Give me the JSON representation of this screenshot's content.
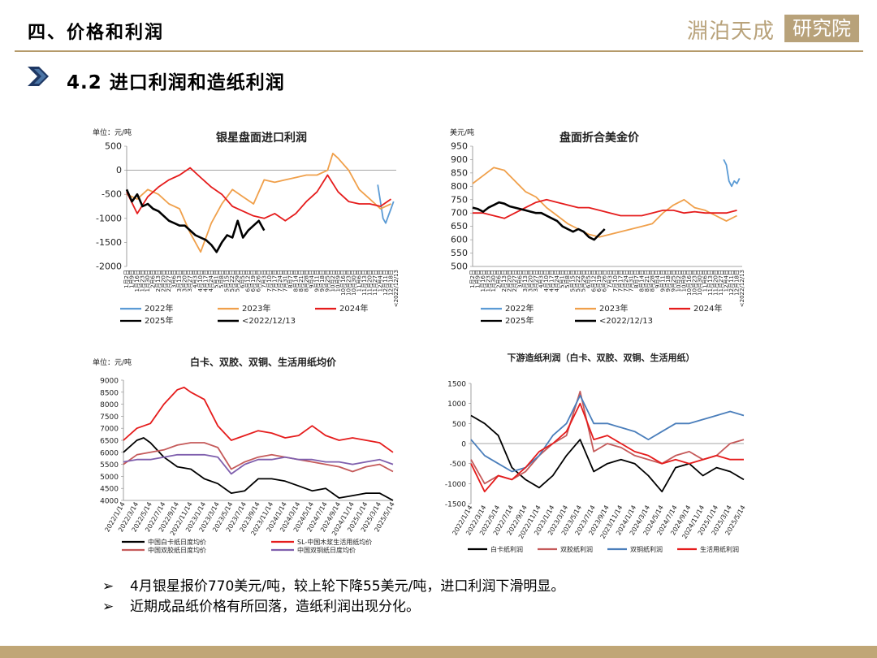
{
  "header": {
    "title": "四、价格和利润",
    "logo_main": "淵泊天成",
    "logo_box": "研究院"
  },
  "subtitle": "4.2 进口利润和造纸利润",
  "bullets": [
    "4月银星报价770美元/吨，较上轮下降55美元/吨，进口利润下滑明显。",
    "近期成品纸价格有所回落，造纸利润出现分化。"
  ],
  "bullet_mark": "➢",
  "colors": {
    "accent": "#b59a6a",
    "arrow": "#1f3864",
    "y2022": "#5b9bd5",
    "y2023": "#f0a04b",
    "y2024": "#e51c1c",
    "y2025": "#000000"
  },
  "chart_data": [
    {
      "type": "line",
      "title": "银星盘面进口利润",
      "unit_label": "单位：元/吨",
      "ylim": [
        -2000,
        500
      ],
      "yticks": [
        "500",
        "0",
        "-500",
        "-1000",
        "-1500",
        "-2000"
      ],
      "xticks": [
        "1月2日",
        "1月9日",
        "1月16日",
        "1月23日",
        "1月30日",
        "2月6日",
        "2月13日",
        "2月20日",
        "2月27日",
        "3月6日",
        "3月13日",
        "3月20日",
        "3月27日",
        "4月3日",
        "4月10日",
        "4月17日",
        "4月24日",
        "5月1日",
        "5月8日",
        "5月15日",
        "5月22日",
        "5月29日",
        "6月5日",
        "6月12日",
        "6月19日",
        "6月26日",
        "7月3日",
        "7月10日",
        "7月17日",
        "7月24日",
        "7月31日",
        "8月7日",
        "8月14日",
        "8月21日",
        "8月28日",
        "9月4日",
        "9月11日",
        "9月18日",
        "9月25日",
        "10月2日",
        "10月9日",
        "10月16日",
        "10月23日",
        "10月30日",
        "11月6日",
        "11月13日",
        "11月20日",
        "11月27日",
        "12月4日",
        "12月11日",
        "12月18日",
        "<2022/12/13"
      ],
      "x_max": 51,
      "series": [
        {
          "name": "2022年",
          "color": "#5b9bd5",
          "x": [
            47.5,
            48,
            48.5,
            49,
            49.5,
            50,
            50.5
          ],
          "y": [
            -300,
            -650,
            -1000,
            -1100,
            -950,
            -800,
            -650
          ]
        },
        {
          "name": "2023年",
          "color": "#f0a04b",
          "x": [
            0,
            2,
            4,
            6,
            8,
            10,
            12,
            14,
            16,
            18,
            20,
            22,
            24,
            26,
            28,
            30,
            32,
            34,
            36,
            38,
            39,
            40,
            42,
            44,
            46,
            48,
            50
          ],
          "y": [
            -500,
            -600,
            -400,
            -500,
            -700,
            -800,
            -1300,
            -1700,
            -1100,
            -700,
            -400,
            -550,
            -700,
            -200,
            -250,
            -200,
            -150,
            -100,
            -100,
            0,
            350,
            250,
            0,
            -400,
            -600,
            -800,
            -700
          ]
        },
        {
          "name": "2024年",
          "color": "#e51c1c",
          "x": [
            0,
            2,
            4,
            6,
            8,
            10,
            12,
            14,
            16,
            18,
            20,
            22,
            24,
            26,
            28,
            30,
            32,
            34,
            36,
            38,
            40,
            42,
            44,
            46,
            48,
            50
          ],
          "y": [
            -450,
            -900,
            -550,
            -350,
            -200,
            -100,
            50,
            -150,
            -350,
            -500,
            -750,
            -850,
            -950,
            -1000,
            -900,
            -1050,
            -900,
            -650,
            -450,
            -100,
            -450,
            -650,
            -700,
            -700,
            -750,
            -600
          ]
        },
        {
          "name": "2025年",
          "color": "#000000",
          "x": [
            0,
            1,
            2,
            3,
            4,
            5,
            6,
            7,
            8,
            9,
            10,
            11,
            12,
            13,
            14,
            15,
            16,
            17,
            18,
            19,
            20,
            21,
            22,
            23,
            24,
            25,
            26
          ],
          "y": [
            -400,
            -650,
            -500,
            -750,
            -700,
            -800,
            -850,
            -950,
            -1050,
            -1100,
            -1150,
            -1150,
            -1250,
            -1350,
            -1400,
            -1450,
            -1550,
            -1700,
            -1500,
            -1350,
            -1400,
            -1050,
            -1400,
            -1250,
            -1150,
            -1050,
            -1250
          ]
        }
      ],
      "legend": [
        "2022年",
        "2023年",
        "2024年",
        "2025年",
        "<2022/12/13"
      ]
    },
    {
      "type": "line",
      "title": "盘面折合美金价",
      "unit_label": "美元/吨",
      "ylim": [
        500,
        950
      ],
      "yticks": [
        "950",
        "900",
        "850",
        "800",
        "750",
        "700",
        "650",
        "600",
        "550",
        "500"
      ],
      "xticks": [
        "1月2日",
        "1月9日",
        "1月16日",
        "1月23日",
        "1月30日",
        "2月6日",
        "2月13日",
        "2月20日",
        "2月27日",
        "3月6日",
        "3月13日",
        "3月20日",
        "3月27日",
        "4月3日",
        "4月10日",
        "4月17日",
        "4月24日",
        "5月1日",
        "5月8日",
        "5月15日",
        "5月22日",
        "5月29日",
        "6月5日",
        "6月12日",
        "6月19日",
        "6月26日",
        "7月3日",
        "7月10日",
        "7月17日",
        "7月24日",
        "7月31日",
        "8月7日",
        "8月14日",
        "8月21日",
        "8月28日",
        "9月4日",
        "9月11日",
        "9月18日",
        "9月25日",
        "10月2日",
        "10月9日",
        "10月16日",
        "10月23日",
        "10月30日",
        "11月6日",
        "11月13日",
        "11月20日",
        "11月27日",
        "12月4日",
        "12月11日",
        "12月18日",
        "<2022/12/13"
      ],
      "x_max": 51,
      "series": [
        {
          "name": "2022年",
          "color": "#5b9bd5",
          "x": [
            47.5,
            48,
            48.5,
            49,
            49.5,
            50,
            50.5
          ],
          "y": [
            900,
            880,
            820,
            800,
            820,
            810,
            830
          ]
        },
        {
          "name": "2023年",
          "color": "#f0a04b",
          "x": [
            0,
            2,
            4,
            6,
            8,
            10,
            12,
            14,
            16,
            18,
            20,
            22,
            24,
            26,
            28,
            30,
            32,
            34,
            36,
            38,
            40,
            42,
            44,
            46,
            48,
            50
          ],
          "y": [
            810,
            840,
            870,
            860,
            820,
            780,
            760,
            720,
            690,
            660,
            640,
            620,
            610,
            620,
            630,
            640,
            650,
            660,
            700,
            730,
            750,
            720,
            710,
            690,
            670,
            690
          ]
        },
        {
          "name": "2024年",
          "color": "#e51c1c",
          "x": [
            0,
            2,
            4,
            6,
            8,
            10,
            12,
            14,
            16,
            18,
            20,
            22,
            24,
            26,
            28,
            30,
            32,
            34,
            36,
            38,
            40,
            42,
            44,
            46,
            48,
            50
          ],
          "y": [
            700,
            700,
            690,
            680,
            700,
            720,
            740,
            750,
            740,
            730,
            720,
            720,
            710,
            700,
            690,
            690,
            690,
            700,
            710,
            710,
            700,
            705,
            700,
            700,
            700,
            710
          ]
        },
        {
          "name": "2025年",
          "color": "#000000",
          "x": [
            0,
            1,
            2,
            3,
            4,
            5,
            6,
            7,
            8,
            9,
            10,
            11,
            12,
            13,
            14,
            15,
            16,
            17,
            18,
            19,
            20,
            21,
            22,
            23,
            24,
            25
          ],
          "y": [
            720,
            715,
            705,
            720,
            730,
            740,
            735,
            725,
            720,
            715,
            710,
            705,
            700,
            700,
            690,
            680,
            670,
            650,
            640,
            630,
            640,
            630,
            610,
            600,
            620,
            640
          ]
        }
      ],
      "legend": [
        "2022年",
        "2023年",
        "2024年",
        "2025年",
        "<2022/12/13"
      ]
    },
    {
      "type": "line",
      "title": "白卡、双胶、双铜、生活用纸均价",
      "unit_label": "单位：元/吨",
      "ylim": [
        4000,
        9000
      ],
      "yticks": [
        "9000",
        "8500",
        "8000",
        "7500",
        "7000",
        "6500",
        "6000",
        "5500",
        "5000",
        "4500",
        "4000"
      ],
      "xticks": [
        "2022/1/14",
        "2022/3/14",
        "2022/5/14",
        "2022/7/14",
        "2022/9/14",
        "2022/11/14",
        "2023/1/14",
        "2023/3/14",
        "2023/5/14",
        "2023/7/14",
        "2023/9/14",
        "2023/11/14",
        "2024/1/14",
        "2024/3/14",
        "2024/5/14",
        "2024/7/14",
        "2024/9/14",
        "2024/11/14",
        "2025/1/14",
        "2025/3/14",
        "2025/5/14"
      ],
      "x_max": 20,
      "series": [
        {
          "name": "中国白卡纸日度均价",
          "color": "#000000",
          "x": [
            0,
            1,
            1.5,
            2,
            3,
            4,
            5,
            6,
            7,
            8,
            9,
            10,
            11,
            12,
            13,
            14,
            15,
            16,
            17,
            18,
            19,
            20
          ],
          "y": [
            6000,
            6500,
            6600,
            6400,
            5800,
            5400,
            5300,
            4900,
            4700,
            4300,
            4400,
            4900,
            4900,
            4800,
            4600,
            4400,
            4500,
            4100,
            4200,
            4300,
            4300,
            4000
          ]
        },
        {
          "name": "SL-中国木浆生活用纸均价",
          "color": "#e51c1c",
          "x": [
            0,
            1,
            2,
            3,
            4,
            4.5,
            5,
            6,
            7,
            8,
            9,
            10,
            11,
            12,
            13,
            14,
            15,
            16,
            17,
            18,
            19,
            20
          ],
          "y": [
            6500,
            7000,
            7200,
            8000,
            8600,
            8700,
            8500,
            8200,
            7100,
            6500,
            6700,
            6900,
            6800,
            6600,
            6700,
            7100,
            6700,
            6500,
            6600,
            6500,
            6400,
            6000
          ]
        },
        {
          "name": "中国双胶纸日度均价",
          "color": "#c55a5a",
          "x": [
            0,
            1,
            2,
            3,
            4,
            5,
            6,
            7,
            8,
            9,
            10,
            11,
            12,
            13,
            14,
            15,
            16,
            17,
            18,
            19,
            20
          ],
          "y": [
            5500,
            5900,
            6000,
            6100,
            6300,
            6400,
            6400,
            6200,
            5300,
            5600,
            5800,
            5900,
            5800,
            5700,
            5600,
            5500,
            5400,
            5200,
            5400,
            5500,
            5200
          ]
        },
        {
          "name": "中国双铜纸日度均价",
          "color": "#7f5fad",
          "x": [
            0,
            1,
            2,
            3,
            4,
            5,
            6,
            7,
            8,
            9,
            10,
            11,
            12,
            13,
            14,
            15,
            16,
            17,
            18,
            19,
            20
          ],
          "y": [
            5600,
            5700,
            5700,
            5800,
            5900,
            5900,
            5900,
            5800,
            5100,
            5500,
            5700,
            5700,
            5800,
            5700,
            5700,
            5600,
            5600,
            5500,
            5600,
            5700,
            5500
          ]
        }
      ],
      "legend": [
        "中国白卡纸日度均价",
        "SL-中国木浆生活用纸均价",
        "中国双胶纸日度均价",
        "中国双铜纸日度均价"
      ]
    },
    {
      "type": "line",
      "title": "下游造纸利润（白卡、双胶、双铜、生活用纸）",
      "ylim": [
        -1500,
        1500
      ],
      "yticks": [
        "1500",
        "1000",
        "500",
        "0",
        "-500",
        "-1000",
        "-1500"
      ],
      "xticks": [
        "2022/1/14",
        "2022/3/14",
        "2022/5/14",
        "2022/7/14",
        "2022/9/14",
        "2022/11/14",
        "2023/1/14",
        "2023/3/14",
        "2023/5/14",
        "2023/7/14",
        "2023/9/14",
        "2023/11/14",
        "2024/1/14",
        "2024/3/14",
        "2024/5/14",
        "2024/7/14",
        "2024/9/14",
        "2024/11/14",
        "2025/1/14",
        "2025/3/14",
        "2025/5/14"
      ],
      "x_max": 20,
      "series": [
        {
          "name": "白卡纸利润",
          "color": "#000000",
          "x": [
            0,
            1,
            2,
            3,
            4,
            5,
            6,
            7,
            8,
            9,
            10,
            11,
            12,
            13,
            14,
            15,
            16,
            17,
            18,
            19,
            20
          ],
          "y": [
            700,
            500,
            200,
            -600,
            -900,
            -1100,
            -800,
            -300,
            100,
            -700,
            -500,
            -400,
            -500,
            -800,
            -1200,
            -600,
            -500,
            -800,
            -600,
            -700,
            -900
          ]
        },
        {
          "name": "双胶纸利润",
          "color": "#c55a5a",
          "x": [
            0,
            1,
            2,
            3,
            4,
            5,
            6,
            7,
            8,
            9,
            10,
            11,
            12,
            13,
            14,
            15,
            16,
            17,
            18,
            19,
            20
          ],
          "y": [
            -400,
            -1000,
            -800,
            -900,
            -700,
            -300,
            0,
            200,
            1300,
            -200,
            0,
            -100,
            -300,
            -400,
            -500,
            -300,
            -200,
            -400,
            -300,
            0,
            100
          ]
        },
        {
          "name": "双铜纸利润",
          "color": "#4a7ebb",
          "x": [
            0,
            1,
            2,
            3,
            4,
            5,
            6,
            7,
            8,
            9,
            10,
            11,
            12,
            13,
            14,
            15,
            16,
            17,
            18,
            19,
            20
          ],
          "y": [
            100,
            -300,
            -500,
            -700,
            -600,
            -300,
            200,
            500,
            1200,
            500,
            500,
            400,
            300,
            100,
            300,
            500,
            500,
            600,
            700,
            800,
            700
          ]
        },
        {
          "name": "生活用纸利润",
          "color": "#e51c1c",
          "x": [
            0,
            1,
            2,
            3,
            4,
            5,
            6,
            7,
            8,
            9,
            10,
            11,
            12,
            13,
            14,
            15,
            16,
            17,
            18,
            19,
            20
          ],
          "y": [
            -500,
            -1200,
            -800,
            -900,
            -600,
            -200,
            0,
            300,
            1000,
            100,
            200,
            0,
            -200,
            -300,
            -500,
            -400,
            -500,
            -400,
            -300,
            -400,
            -400
          ]
        }
      ],
      "legend": [
        "白卡纸利润",
        "双胶纸利润",
        "双铜纸利润",
        "生活用纸利润"
      ]
    }
  ]
}
